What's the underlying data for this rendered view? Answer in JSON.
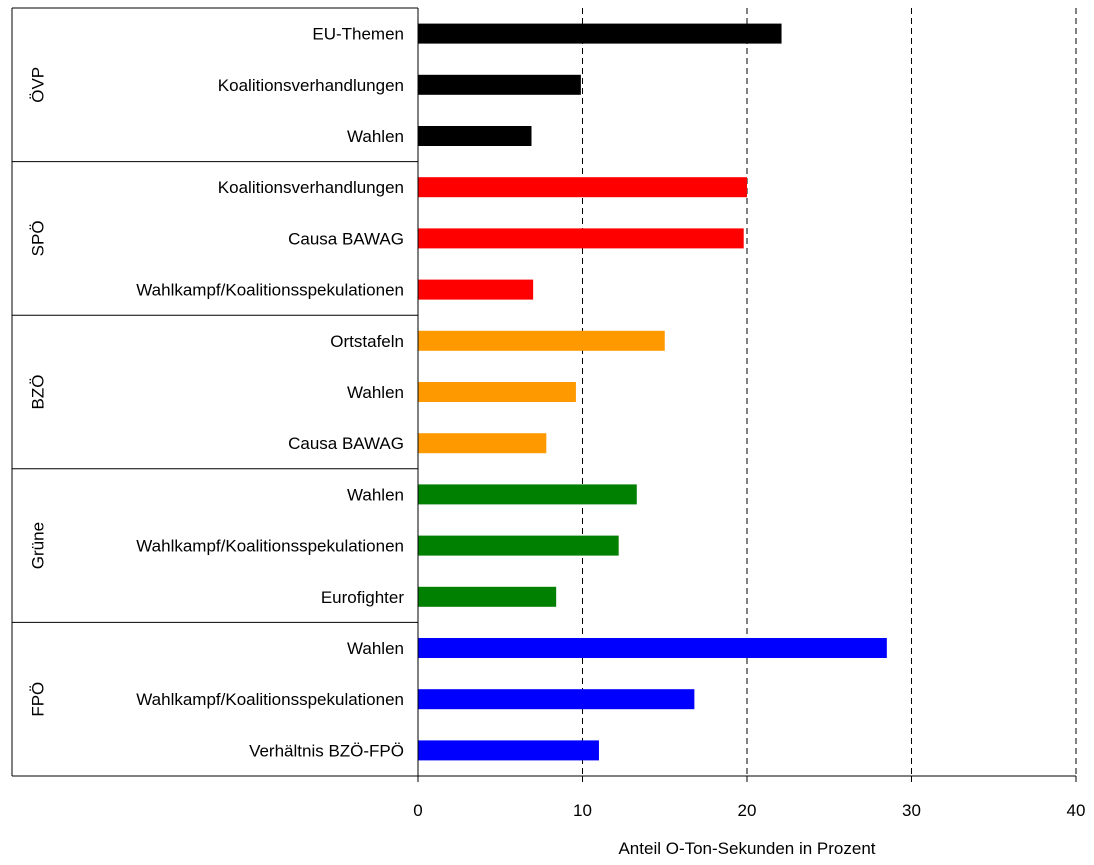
{
  "chart_data": {
    "type": "bar",
    "orientation": "horizontal",
    "xlabel": "Anteil O-Ton-Sekunden in Prozent",
    "xlim": [
      0,
      40
    ],
    "xticks": [
      0,
      10,
      20,
      30,
      40
    ],
    "grid": "vertical dashed",
    "legend": "none",
    "groups": [
      {
        "name": "ÖVP",
        "color": "#000000",
        "items": [
          {
            "label": "EU-Themen",
            "value": 22.1
          },
          {
            "label": "Koalitionsverhandlungen",
            "value": 9.9
          },
          {
            "label": "Wahlen",
            "value": 6.9
          }
        ]
      },
      {
        "name": "SPÖ",
        "color": "#ff0000",
        "items": [
          {
            "label": "Koalitionsverhandlungen",
            "value": 20.0
          },
          {
            "label": "Causa BAWAG",
            "value": 19.8
          },
          {
            "label": "Wahlkampf/Koalitionsspekulationen",
            "value": 7.0
          }
        ]
      },
      {
        "name": "BZÖ",
        "color": "#ff9900",
        "items": [
          {
            "label": "Ortstafeln",
            "value": 15.0
          },
          {
            "label": "Wahlen",
            "value": 9.6
          },
          {
            "label": "Causa BAWAG",
            "value": 7.8
          }
        ]
      },
      {
        "name": "Grüne",
        "color": "#008000",
        "items": [
          {
            "label": "Wahlen",
            "value": 13.3
          },
          {
            "label": "Wahlkampf/Koalitionsspekulationen",
            "value": 12.2
          },
          {
            "label": "Eurofighter",
            "value": 8.4
          }
        ]
      },
      {
        "name": "FPÖ",
        "color": "#0000ff",
        "items": [
          {
            "label": "Wahlen",
            "value": 28.5
          },
          {
            "label": "Wahlkampf/Koalitionsspekulationen",
            "value": 16.8
          },
          {
            "label": "Verhältnis BZÖ-FPÖ",
            "value": 11.0
          }
        ]
      }
    ]
  }
}
